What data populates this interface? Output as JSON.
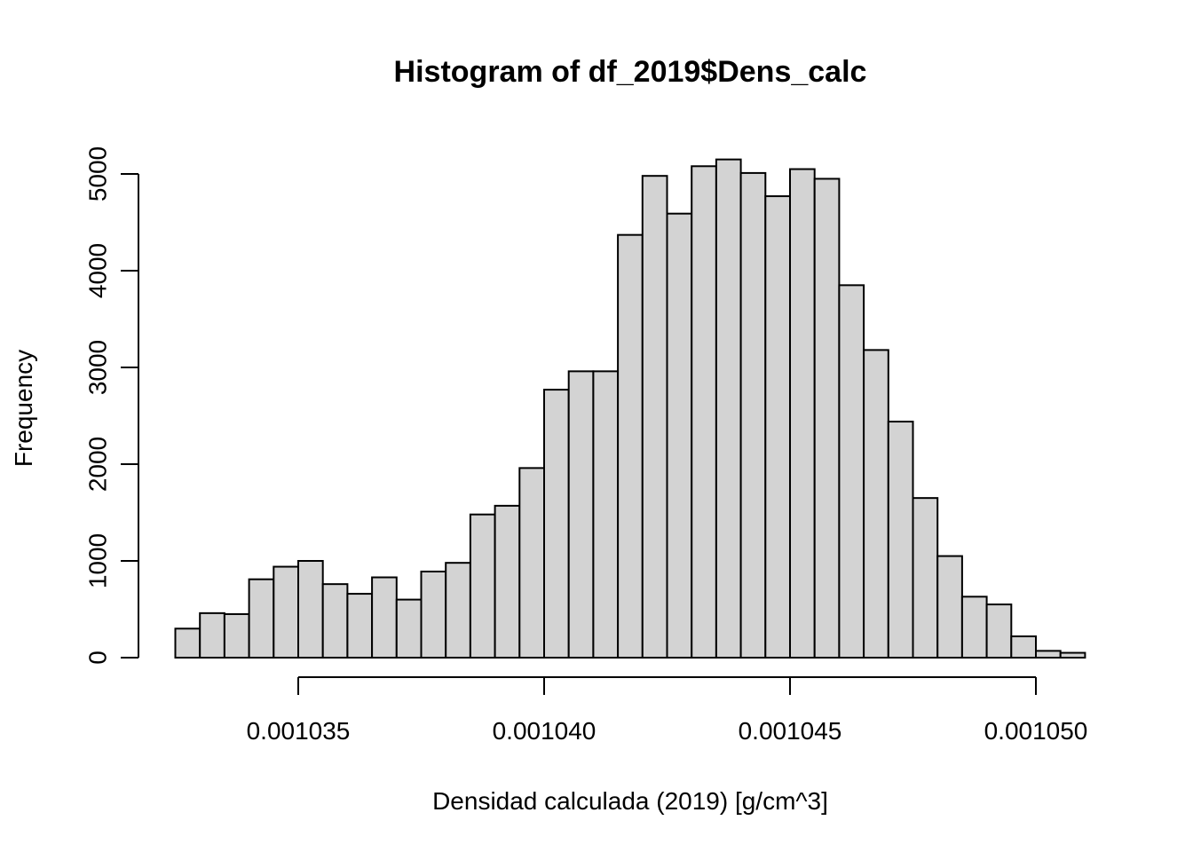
{
  "chart_data": {
    "type": "bar",
    "title": "Histogram of df_2019$Dens_calc",
    "xlabel": "Densidad calculada (2019) [g/cm^3]",
    "ylabel": "Frequency",
    "bin_start": 0.0010325,
    "bin_width": 5e-07,
    "xlim": [
      0.00103,
      0.001052
    ],
    "ylim": [
      0,
      5200
    ],
    "x_ticks": [
      0.001035,
      0.00104,
      0.001045,
      0.00105
    ],
    "x_tick_labels": [
      "0.001035",
      "0.001040",
      "0.001045",
      "0.001050"
    ],
    "y_ticks": [
      0,
      1000,
      2000,
      3000,
      4000,
      5000
    ],
    "y_tick_labels": [
      "0",
      "1000",
      "2000",
      "3000",
      "4000",
      "5000"
    ],
    "values": [
      300,
      460,
      450,
      810,
      940,
      1000,
      760,
      660,
      830,
      600,
      890,
      980,
      1480,
      1570,
      1960,
      2770,
      2960,
      2960,
      4370,
      4980,
      4590,
      5080,
      5150,
      5010,
      4770,
      5050,
      4950,
      3850,
      3180,
      2440,
      1650,
      1050,
      630,
      550,
      220,
      70,
      50
    ]
  }
}
